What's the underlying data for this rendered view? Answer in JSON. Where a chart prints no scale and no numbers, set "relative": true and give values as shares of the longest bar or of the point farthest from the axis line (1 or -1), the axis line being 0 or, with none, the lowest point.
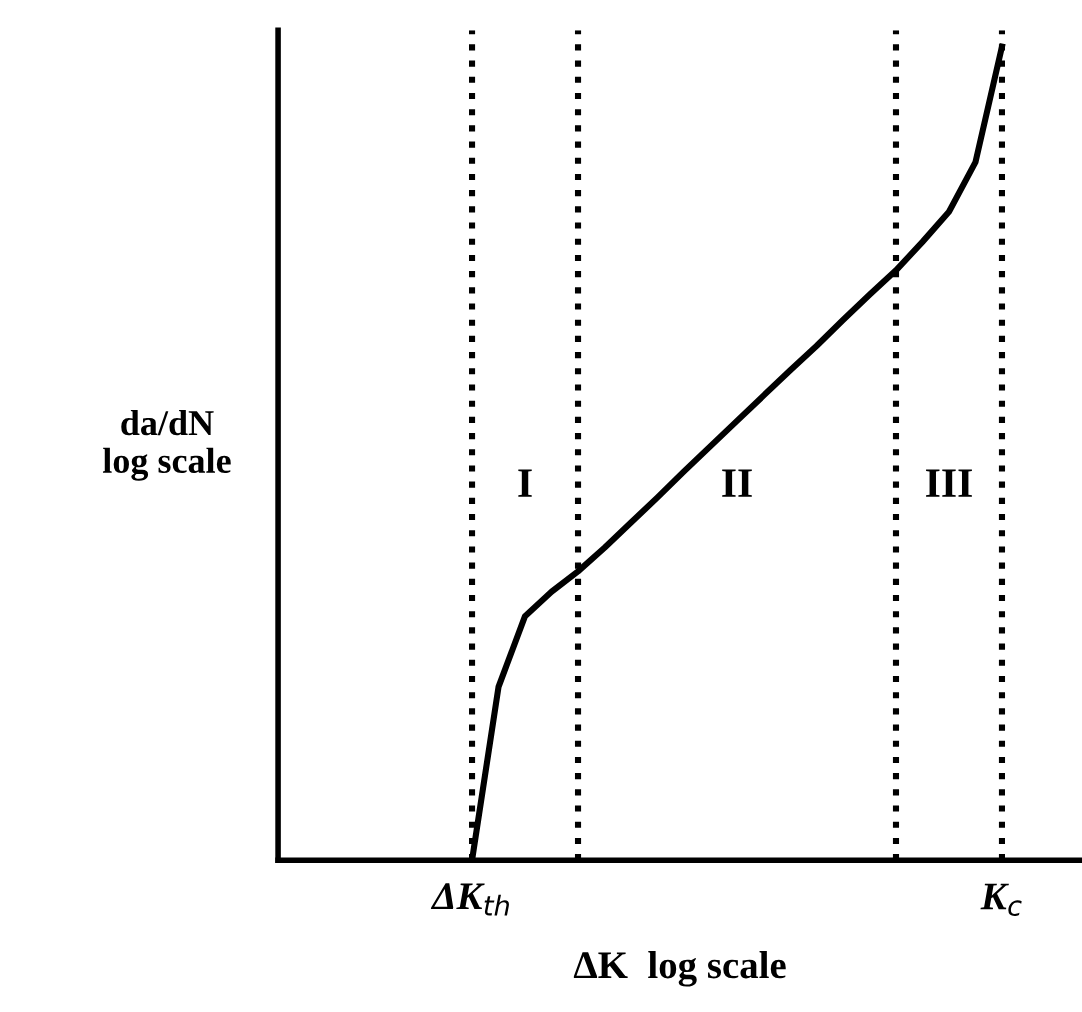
{
  "chart_data": {
    "type": "line",
    "relative": true,
    "xlabel": "ΔK  log scale",
    "ylabel": "da/dN\nlog scale",
    "categories": [
      null,
      null,
      null,
      null,
      null,
      null,
      null,
      "ΔK$_{th}$",
      null,
      null,
      null,
      null,
      null,
      null,
      null,
      null,
      null,
      null,
      null,
      null,
      null,
      null,
      null,
      null,
      null,
      null,
      null,
      "K$_{c}$",
      null,
      null,
      null
    ],
    "series": [
      {
        "color": "#000000",
        "values": [
          null,
          null,
          null,
          null,
          null,
          null,
          null,
          0,
          0.213,
          0.3,
          0.33,
          0.355,
          0.384,
          0.415,
          0.446,
          0.478,
          0.509,
          0.54,
          0.571,
          0.602,
          0.632,
          0.664,
          0.695,
          0.725,
          0.76,
          0.797,
          0.858,
          1.0,
          null,
          null,
          null
        ]
      }
    ],
    "grid": "x",
    "annotations": [
      "I",
      "II",
      "III"
    ],
    "legend": false,
    "marker": "none",
    "line_style": "solid"
  }
}
